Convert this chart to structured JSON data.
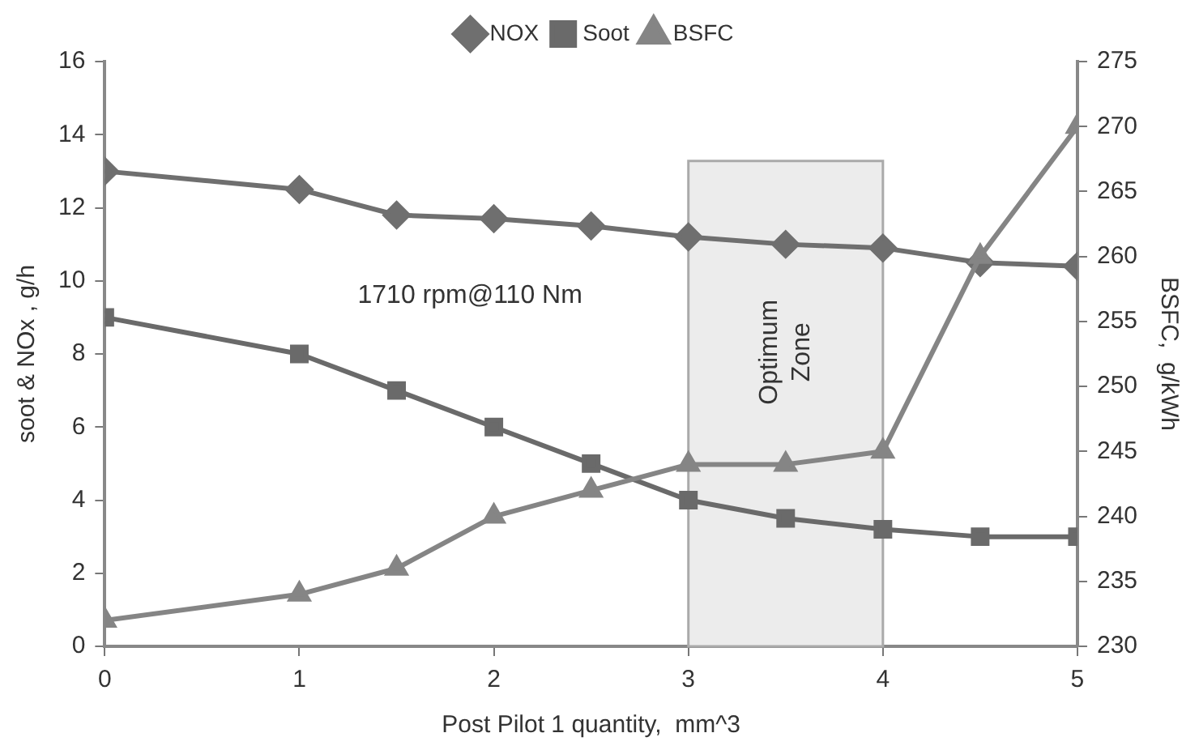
{
  "chart_data": {
    "type": "line",
    "xlabel": "Post Pilot 1 quantity,  mm^3",
    "ylabel": "soot & NOx , g/h",
    "y2label": "BSFC,  g/kWh",
    "x": [
      0,
      1,
      1.5,
      2,
      2.5,
      3,
      3.5,
      4,
      4.5,
      5
    ],
    "series": [
      {
        "name": "NOX",
        "color": "#6f6f6f",
        "marker": "diamond",
        "values": [
          13,
          12.5,
          11.8,
          11.7,
          11.5,
          11.2,
          11,
          10.9,
          10.5,
          10.4
        ]
      },
      {
        "name": "Soot",
        "color": "#6a6a6a",
        "marker": "square",
        "values": [
          9,
          8,
          7,
          6,
          5,
          4,
          3.5,
          3.2,
          3,
          3
        ]
      },
      {
        "name": "BSFC",
        "color": "#858585",
        "marker": "triangle",
        "axis": "y2",
        "values": [
          232,
          234,
          236,
          240,
          242,
          244,
          244,
          245,
          260,
          270
        ]
      }
    ],
    "xlim": [
      0,
      5
    ],
    "xticks": [
      0,
      1,
      2,
      3,
      4,
      5
    ],
    "ylim": [
      0,
      16
    ],
    "yticks": [
      0,
      2,
      4,
      6,
      8,
      10,
      12,
      14,
      16
    ],
    "y2lim": [
      230,
      275
    ],
    "y2ticks": [
      230,
      235,
      240,
      245,
      250,
      255,
      260,
      265,
      270,
      275
    ],
    "bands": [
      {
        "axis": "x",
        "from": 3,
        "to": 4,
        "label": "Optimum Zone",
        "color": "#ececec"
      }
    ],
    "annotations": [
      "1710 rpm@110 Nm"
    ],
    "legend": "top",
    "grid": false,
    "line_style": "solid"
  }
}
